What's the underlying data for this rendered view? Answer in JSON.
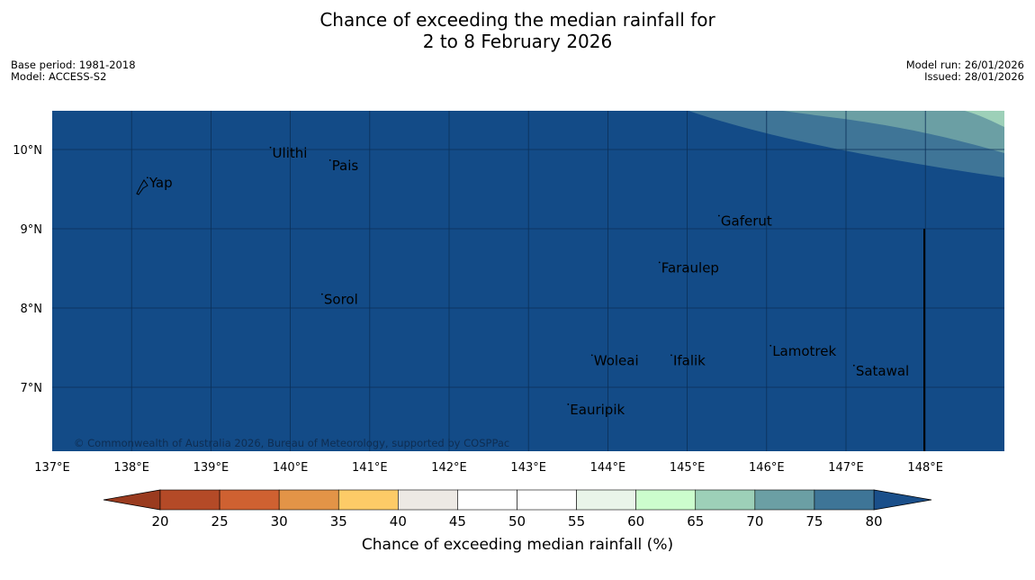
{
  "header": {
    "title_line1": "Chance of exceeding the median rainfall for",
    "title_line2": "2 to 8 February 2026",
    "base_period": "Base period: 1981-2018",
    "model": "Model: ACCESS-S2",
    "model_run": "Model run: 26/01/2026",
    "issued": "Issued: 28/01/2026"
  },
  "map": {
    "background_color": "#134b87",
    "copyright": "© Commonwealth of Australia 2026, Bureau of Meteorology, supported by COSPPac",
    "lon_labels": [
      "137°E",
      "138°E",
      "139°E",
      "140°E",
      "141°E",
      "142°E",
      "143°E",
      "144°E",
      "145°E",
      "146°E",
      "147°E",
      "148°E"
    ],
    "lat_labels": [
      "10°N",
      "9°N",
      "8°N",
      "7°N"
    ],
    "places": [
      {
        "name": "Ulithi",
        "lon": 139.75,
        "lat": 9.9
      },
      {
        "name": "Pais",
        "lon": 140.5,
        "lat": 9.74
      },
      {
        "name": "Yap",
        "lon": 138.2,
        "lat": 9.52
      },
      {
        "name": "Gaferut",
        "lon": 145.4,
        "lat": 9.04
      },
      {
        "name": "Faraulep",
        "lon": 144.65,
        "lat": 8.45
      },
      {
        "name": "Sorol",
        "lon": 140.4,
        "lat": 8.05
      },
      {
        "name": "Lamotrek",
        "lon": 146.05,
        "lat": 7.4
      },
      {
        "name": "Woleai",
        "lon": 143.8,
        "lat": 7.28
      },
      {
        "name": "Ifalik",
        "lon": 144.8,
        "lat": 7.28
      },
      {
        "name": "Satawal",
        "lon": 147.1,
        "lat": 7.15
      },
      {
        "name": "Eauripik",
        "lon": 143.5,
        "lat": 6.66
      }
    ]
  },
  "colorbar": {
    "label": "Chance of exceeding median rainfall (%)",
    "ticks": [
      "20",
      "25",
      "30",
      "35",
      "40",
      "45",
      "50",
      "55",
      "60",
      "65",
      "70",
      "75",
      "80"
    ],
    "low_extend_color": "#9a3b1f",
    "high_extend_color": "#1a4f8a",
    "segments": [
      {
        "range": "20-25",
        "color": "#b44a27"
      },
      {
        "range": "25-30",
        "color": "#cf6131"
      },
      {
        "range": "30-35",
        "color": "#e39447"
      },
      {
        "range": "35-40",
        "color": "#fdcb67"
      },
      {
        "range": "40-45",
        "color": "#ede9e4"
      },
      {
        "range": "45-50",
        "color": "#ffffff"
      },
      {
        "range": "50-55",
        "color": "#ffffff"
      },
      {
        "range": "55-60",
        "color": "#e9f5e9"
      },
      {
        "range": "60-65",
        "color": "#ccfdcd"
      },
      {
        "range": "65-70",
        "color": "#9dd0b8"
      },
      {
        "range": "70-75",
        "color": "#6b9fa4"
      },
      {
        "range": "75-80",
        "color": "#3e7597"
      }
    ]
  }
}
